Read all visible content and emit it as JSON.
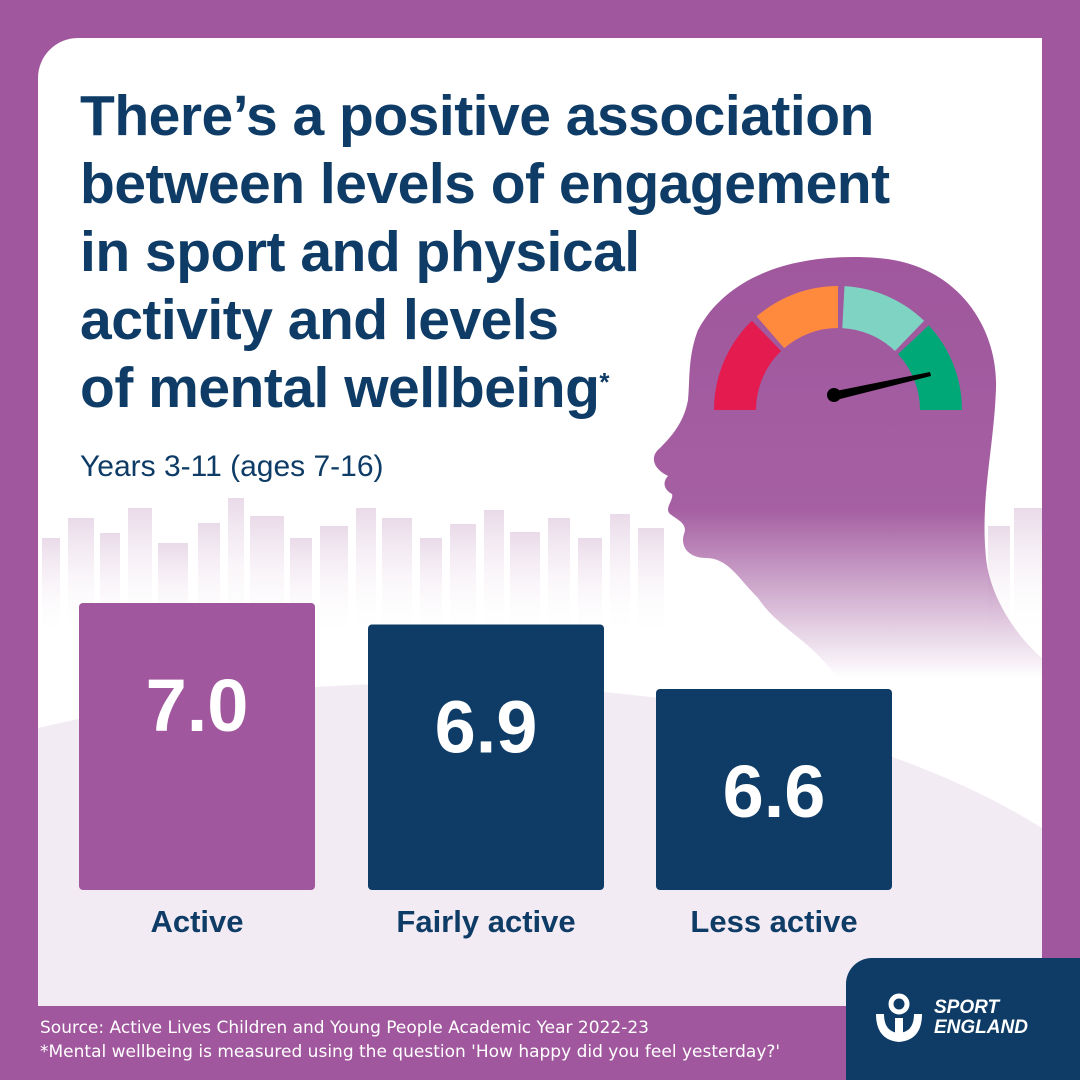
{
  "title_lines": [
    "There’s a positive association",
    "between levels of engagement",
    "in sport and physical",
    "activity and levels",
    "of mental wellbeing"
  ],
  "title_mark": "*",
  "subtitle": "Years 3-11 (ages 7-16)",
  "chart_data": {
    "type": "bar",
    "categories": [
      "Active",
      "Fairly active",
      "Less active"
    ],
    "values": [
      7.0,
      6.9,
      6.6
    ],
    "value_labels": [
      "7.0",
      "6.9",
      "6.6"
    ],
    "bar_colors": [
      "#a0579d",
      "#0e3c66",
      "#0e3c66"
    ],
    "title": "There’s a positive association between levels of engagement in sport and physical activity and levels of mental wellbeing",
    "xlabel": "",
    "ylabel": "",
    "grid": false
  },
  "gauge": {
    "segment_colors": [
      "#e31b4e",
      "#ff8a3d",
      "#7fd3c3",
      "#00a878"
    ],
    "needle_color": "#000000"
  },
  "footer": {
    "source": "Source: Active Lives Children and Young People Academic Year 2022-23",
    "note": "*Mental wellbeing is measured using the question 'How happy did you feel yesterday?'"
  },
  "logo": {
    "line1": "SPORT",
    "line2": "ENGLAND"
  },
  "colors": {
    "purple": "#a0579d",
    "navy": "#0e3c66"
  }
}
